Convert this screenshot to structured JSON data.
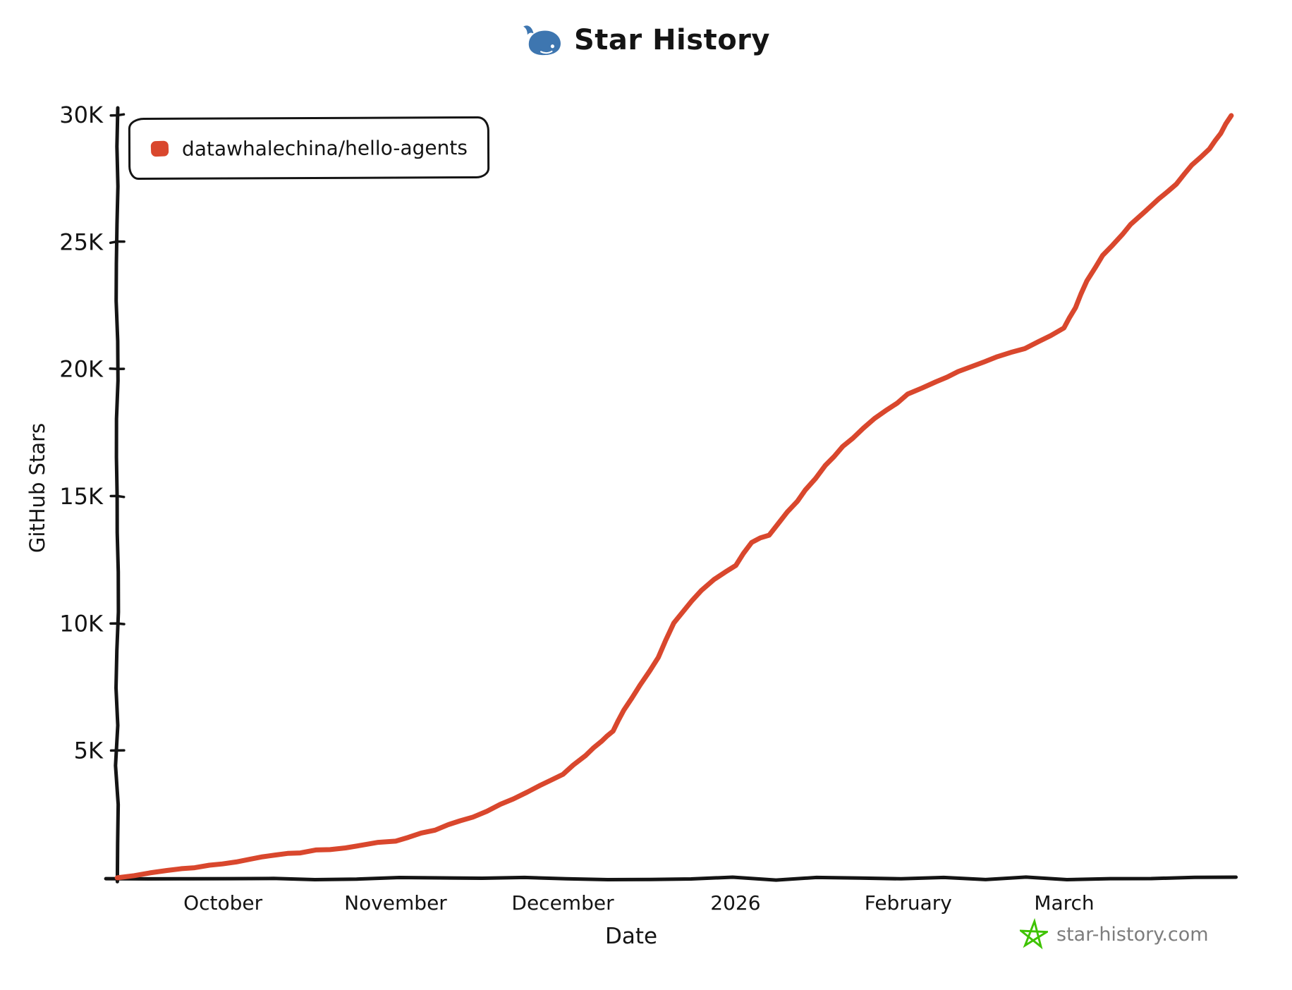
{
  "header": {
    "title": "Star History",
    "whale_icon_color": "#3e76b0"
  },
  "legend": {
    "items": [
      {
        "label": "datawhalechina/hello-agents",
        "color": "#d9472d"
      }
    ]
  },
  "watermark": {
    "text": "star-history.com",
    "text_color": "#7d7d7d",
    "star_icon_color": "#3ec300"
  },
  "chart_data": {
    "type": "line",
    "title": "Star History",
    "xlabel": "Date",
    "ylabel": "GitHub Stars",
    "ylim": [
      0,
      30000
    ],
    "grid": false,
    "legend_position": "top-left",
    "background": "#ffffff",
    "axis_color": "#141414",
    "style": "hand-drawn-xkcd",
    "x_range": [
      "2025-09-12",
      "2026-03-31"
    ],
    "y_ticks": [
      {
        "value": 5000,
        "label": "5K"
      },
      {
        "value": 10000,
        "label": "10K"
      },
      {
        "value": 15000,
        "label": "15K"
      },
      {
        "value": 20000,
        "label": "20K"
      },
      {
        "value": 25000,
        "label": "25K"
      },
      {
        "value": 30000,
        "label": "30K"
      }
    ],
    "x_ticks": [
      {
        "date": "2025-10-01",
        "label": "October"
      },
      {
        "date": "2025-11-01",
        "label": "November"
      },
      {
        "date": "2025-12-01",
        "label": "December"
      },
      {
        "date": "2026-01-01",
        "label": "2026"
      },
      {
        "date": "2026-02-01",
        "label": "February"
      },
      {
        "date": "2026-03-01",
        "label": "March"
      }
    ],
    "series": [
      {
        "name": "datawhalechina/hello-agents",
        "color": "#d9472d",
        "points": [
          [
            "2025-09-12",
            0
          ],
          [
            "2025-09-21",
            300
          ],
          [
            "2025-10-01",
            550
          ],
          [
            "2025-10-08",
            800
          ],
          [
            "2025-10-15",
            1000
          ],
          [
            "2025-10-23",
            1200
          ],
          [
            "2025-11-01",
            1450
          ],
          [
            "2025-11-08",
            1900
          ],
          [
            "2025-11-15",
            2400
          ],
          [
            "2025-11-22",
            3100
          ],
          [
            "2025-11-27",
            3600
          ],
          [
            "2025-12-01",
            4100
          ],
          [
            "2025-12-05",
            4800
          ],
          [
            "2025-12-08",
            5400
          ],
          [
            "2025-12-10",
            5800
          ],
          [
            "2025-12-12",
            6600
          ],
          [
            "2025-12-15",
            7600
          ],
          [
            "2025-12-18",
            8700
          ],
          [
            "2025-12-21",
            10000
          ],
          [
            "2025-12-24",
            10900
          ],
          [
            "2025-12-28",
            11700
          ],
          [
            "2026-01-01",
            12300
          ],
          [
            "2026-01-04",
            13200
          ],
          [
            "2026-01-07",
            13500
          ],
          [
            "2026-01-12",
            14800
          ],
          [
            "2026-01-17",
            16200
          ],
          [
            "2026-01-22",
            17300
          ],
          [
            "2026-01-28",
            18400
          ],
          [
            "2026-02-01",
            19000
          ],
          [
            "2026-02-06",
            19500
          ],
          [
            "2026-02-10",
            19900
          ],
          [
            "2026-02-17",
            20500
          ],
          [
            "2026-02-22",
            20800
          ],
          [
            "2026-03-01",
            21600
          ],
          [
            "2026-03-03",
            22400
          ],
          [
            "2026-03-05",
            23500
          ],
          [
            "2026-03-08",
            24500
          ],
          [
            "2026-03-13",
            25700
          ],
          [
            "2026-03-18",
            26700
          ],
          [
            "2026-03-21",
            27300
          ],
          [
            "2026-03-24",
            28000
          ],
          [
            "2026-03-27",
            28700
          ],
          [
            "2026-03-29",
            29300
          ],
          [
            "2026-03-31",
            30000
          ]
        ]
      }
    ]
  }
}
